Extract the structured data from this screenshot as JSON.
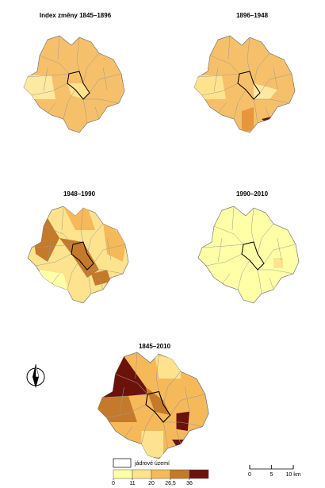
{
  "maps": [
    {
      "title": "Index změny 1845–1896"
    },
    {
      "title": "1896–1948"
    },
    {
      "title": "1948–1990"
    },
    {
      "title": "1990–2010"
    },
    {
      "title": "1845–2010"
    }
  ],
  "legend": {
    "core_label": "jádrové území",
    "classes": [
      {
        "color": "#ffffa8"
      },
      {
        "color": "#fde38e"
      },
      {
        "color": "#f6b95a"
      },
      {
        "color": "#c47a2a"
      },
      {
        "color": "#6b120a"
      }
    ],
    "breaks": [
      0,
      11,
      20,
      {
        "value": 26.5,
        "label": "26,5"
      },
      36
    ]
  },
  "scale_bar": {
    "ticks": [
      0,
      5,
      {
        "value": 10,
        "label": "10 km"
      }
    ]
  }
}
